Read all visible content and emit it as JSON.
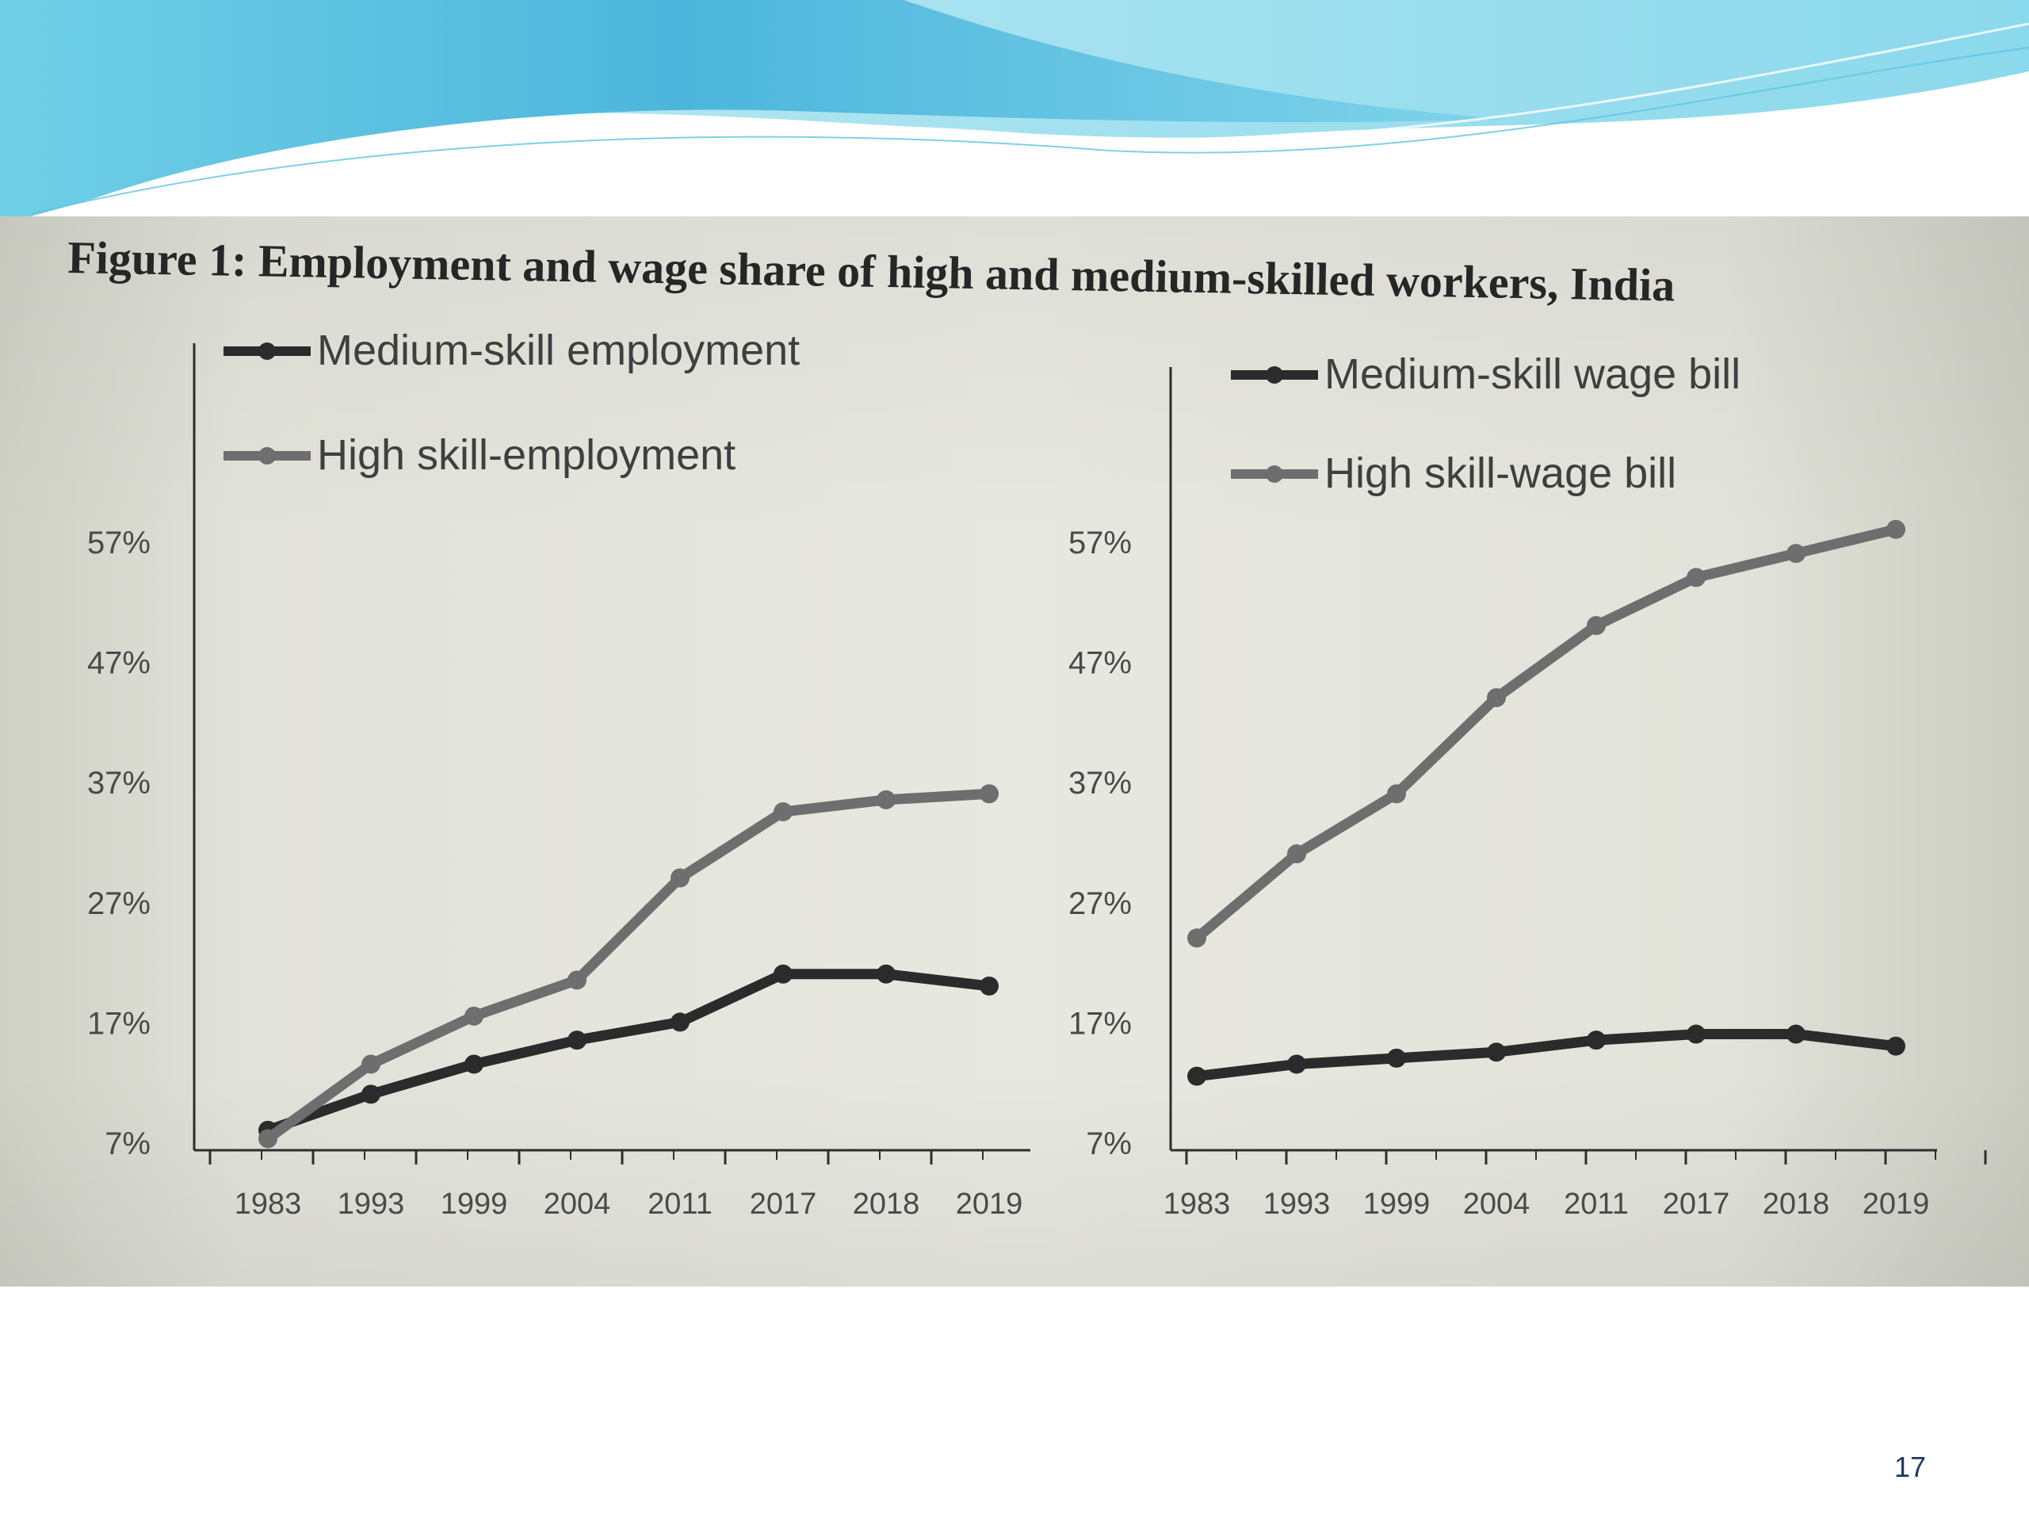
{
  "slide": {
    "page_number": "17",
    "colors": {
      "wave_dark": "#4cb8dd",
      "wave_light": "#a8e2ef",
      "photo_background": "#e3e4dc"
    }
  },
  "figure": {
    "title": "Figure 1: Employment and wage share of high and medium-skilled workers, India"
  },
  "chart_data": [
    {
      "type": "line",
      "categories": [
        "1983",
        "1993",
        "1999",
        "2004",
        "2011",
        "2017",
        "2018",
        "2019"
      ],
      "y_ticks": [
        "7%",
        "17%",
        "27%",
        "37%",
        "47%",
        "57%"
      ],
      "ylim": [
        7,
        57
      ],
      "legend_position": "top-left",
      "series": [
        {
          "name": "Medium-skill employment",
          "color": "#2b2b2b",
          "values": [
            8,
            11,
            13.5,
            15.5,
            17,
            21,
            21,
            20
          ]
        },
        {
          "name": "High skill-employment",
          "color": "#6e6e6e",
          "values": [
            7.3,
            13.5,
            17.5,
            20.5,
            29,
            34.5,
            35.5,
            36
          ]
        }
      ],
      "grid": false
    },
    {
      "type": "line",
      "categories": [
        "1983",
        "1993",
        "1999",
        "2004",
        "2011",
        "2017",
        "2018",
        "2019"
      ],
      "y_ticks": [
        "7%",
        "17%",
        "27%",
        "37%",
        "47%",
        "57%"
      ],
      "ylim": [
        7,
        57
      ],
      "legend_position": "top-right",
      "series": [
        {
          "name": "Medium-skill wage bill",
          "color": "#2b2b2b",
          "values": [
            12.5,
            13.5,
            14,
            14.5,
            15.5,
            16,
            16,
            15
          ]
        },
        {
          "name": "High skill-wage bill",
          "color": "#6e6e6e",
          "values": [
            24,
            31,
            36,
            44,
            50,
            54,
            56,
            58
          ]
        }
      ],
      "grid": false
    }
  ]
}
